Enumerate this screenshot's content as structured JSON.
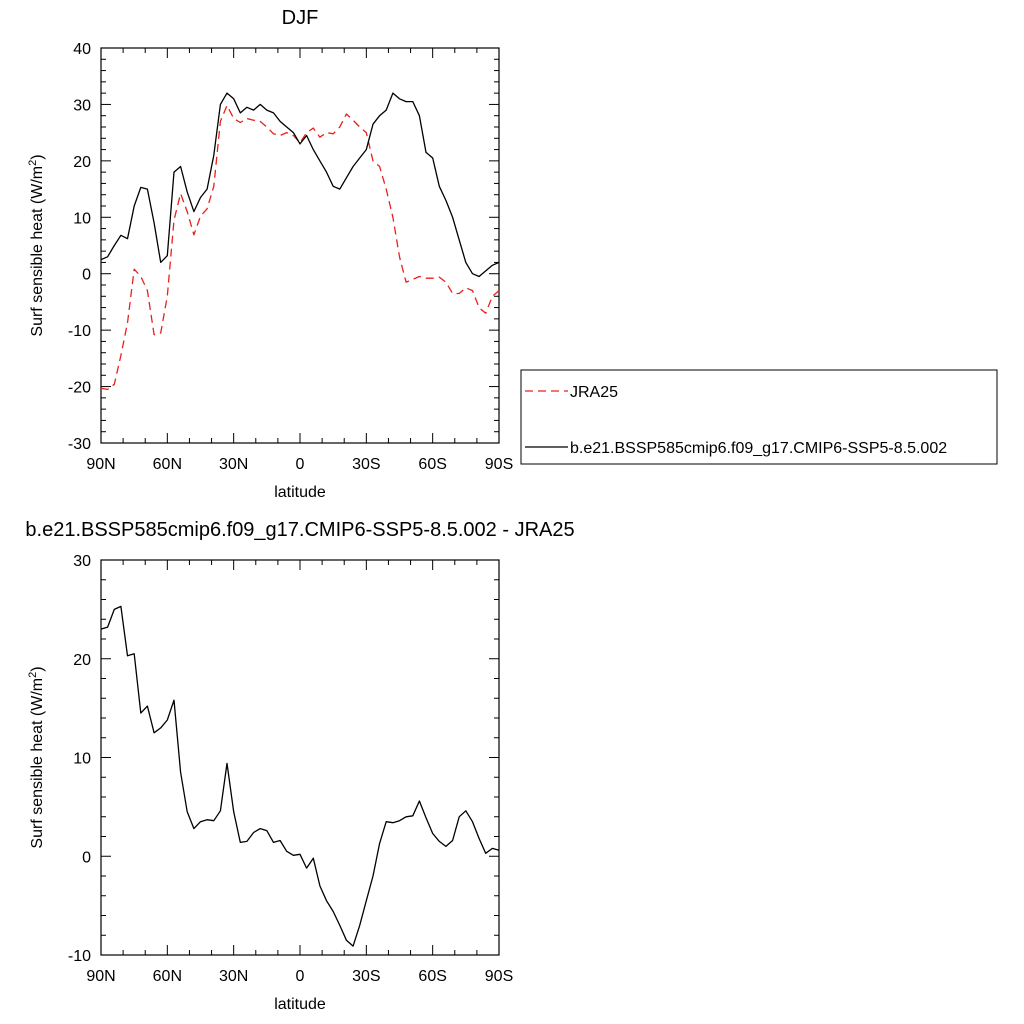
{
  "chart_data": [
    {
      "type": "line",
      "title": "DJF",
      "xlabel": "latitude",
      "ylabel": "Surf sensible heat (W/m",
      "ylabel_sup": "2",
      "ylabel_close": ")",
      "xlim": [
        90,
        -90
      ],
      "ylim": [
        -30,
        40
      ],
      "x_ticks": [
        90,
        60,
        30,
        0,
        -30,
        -60,
        -90
      ],
      "x_tick_labels": [
        "90N",
        "60N",
        "30N",
        "0",
        "30S",
        "60S",
        "90S"
      ],
      "y_ticks": [
        -30,
        -20,
        -10,
        0,
        10,
        20,
        30,
        40
      ],
      "y_tick_labels": [
        "-30",
        "-20",
        "-10",
        "0",
        "10",
        "20",
        "30",
        "40"
      ],
      "legend_position": "right",
      "series": [
        {
          "name": "JRA25",
          "color": "#e8211b",
          "dash": "dashed",
          "x": [
            90,
            87,
            84,
            81,
            78,
            75,
            72,
            69,
            66,
            63,
            60,
            57,
            54,
            51,
            48,
            45,
            42,
            39,
            36,
            33,
            30,
            27,
            24,
            21,
            18,
            15,
            12,
            9,
            6,
            3,
            0,
            -3,
            -6,
            -9,
            -12,
            -15,
            -18,
            -21,
            -24,
            -27,
            -30,
            -33,
            -36,
            -39,
            -42,
            -45,
            -48,
            -51,
            -54,
            -57,
            -60,
            -63,
            -66,
            -69,
            -72,
            -75,
            -78,
            -81,
            -84,
            -87,
            -90
          ],
          "y": [
            -20.3,
            -20.5,
            -19.6,
            -14.5,
            -8.7,
            0.8,
            -0.5,
            -3.0,
            -10.8,
            -10.5,
            -4.0,
            9.5,
            14.2,
            11.0,
            6.9,
            10.2,
            11.5,
            15.5,
            27.0,
            29.8,
            27.5,
            26.8,
            27.5,
            27.2,
            27.0,
            26.0,
            24.8,
            24.5,
            25.0,
            24.5,
            23.2,
            25.0,
            25.8,
            24.2,
            25.0,
            24.8,
            26.0,
            28.3,
            27.2,
            26.0,
            25.0,
            20.0,
            19.0,
            15.0,
            10.0,
            3.0,
            -1.5,
            -1.0,
            -0.5,
            -0.8,
            -0.8,
            -0.6,
            -1.5,
            -3.5,
            -3.5,
            -2.5,
            -3.0,
            -6.0,
            -7.0,
            -4.0,
            -3.0
          ]
        },
        {
          "name": "b.e21.BSSP585cmip6.f09_g17.CMIP6-SSP5-8.5.002",
          "color": "#000000",
          "dash": "solid",
          "x": [
            90,
            87,
            84,
            81,
            78,
            75,
            72,
            69,
            66,
            63,
            60,
            57,
            54,
            51,
            48,
            45,
            42,
            39,
            36,
            33,
            30,
            27,
            24,
            21,
            18,
            15,
            12,
            9,
            6,
            3,
            0,
            -3,
            -6,
            -9,
            -12,
            -15,
            -18,
            -21,
            -24,
            -27,
            -30,
            -33,
            -36,
            -39,
            -42,
            -45,
            -48,
            -51,
            -54,
            -57,
            -60,
            -63,
            -66,
            -69,
            -72,
            -75,
            -78,
            -81,
            -84,
            -87,
            -90
          ],
          "y": [
            2.5,
            3.0,
            5.0,
            6.8,
            6.2,
            12.0,
            15.3,
            15.0,
            9.0,
            2.0,
            3.2,
            18.0,
            19.0,
            14.5,
            11.0,
            13.5,
            15.0,
            21.0,
            30.0,
            32.0,
            31.0,
            28.5,
            29.5,
            29.0,
            30.0,
            29.0,
            28.5,
            27.0,
            26.0,
            25.0,
            23.0,
            24.5,
            22.0,
            20.0,
            18.0,
            15.5,
            15.0,
            17.0,
            19.0,
            20.5,
            22.0,
            26.5,
            28.0,
            29.0,
            32.0,
            31.0,
            30.5,
            30.5,
            28.0,
            21.5,
            20.5,
            15.5,
            13.0,
            10.0,
            6.0,
            2.0,
            0.0,
            -0.5,
            0.5,
            1.5,
            2.0
          ]
        }
      ]
    },
    {
      "type": "line",
      "title": "b.e21.BSSP585cmip6.f09_g17.CMIP6-SSP5-8.5.002 - JRA25",
      "xlabel": "latitude",
      "ylabel": "Surf sensible heat (W/m",
      "ylabel_sup": "2",
      "ylabel_close": ")",
      "xlim": [
        90,
        -90
      ],
      "ylim": [
        -10,
        30
      ],
      "x_ticks": [
        90,
        60,
        30,
        0,
        -30,
        -60,
        -90
      ],
      "x_tick_labels": [
        "90N",
        "60N",
        "30N",
        "0",
        "30S",
        "60S",
        "90S"
      ],
      "y_ticks": [
        -10,
        0,
        10,
        20,
        30
      ],
      "y_tick_labels": [
        "-10",
        "0",
        "10",
        "20",
        "30"
      ],
      "series": [
        {
          "color": "#000000",
          "dash": "solid",
          "x": [
            90,
            87,
            84,
            81,
            78,
            75,
            72,
            69,
            66,
            63,
            60,
            57,
            54,
            51,
            48,
            45,
            42,
            39,
            36,
            33,
            30,
            27,
            24,
            21,
            18,
            15,
            12,
            9,
            6,
            3,
            0,
            -3,
            -6,
            -9,
            -12,
            -15,
            -18,
            -21,
            -24,
            -27,
            -30,
            -33,
            -36,
            -39,
            -42,
            -45,
            -48,
            -51,
            -54,
            -57,
            -60,
            -63,
            -66,
            -69,
            -72,
            -75,
            -78,
            -81,
            -84,
            -87,
            -90
          ],
          "y": [
            23.0,
            23.2,
            25.0,
            25.3,
            20.3,
            20.5,
            14.5,
            15.2,
            12.5,
            13.0,
            13.8,
            15.8,
            8.5,
            4.5,
            2.8,
            3.5,
            3.7,
            3.6,
            4.6,
            9.4,
            4.5,
            1.4,
            1.5,
            2.4,
            2.8,
            2.6,
            1.4,
            1.6,
            0.5,
            0.1,
            0.2,
            -1.2,
            -0.2,
            -3.0,
            -4.5,
            -5.6,
            -7.0,
            -8.5,
            -9.1,
            -7.0,
            -4.5,
            -2.0,
            1.3,
            3.5,
            3.4,
            3.6,
            4.0,
            4.1,
            5.6,
            3.9,
            2.3,
            1.5,
            1.0,
            1.6,
            4.0,
            4.6,
            3.5,
            1.8,
            0.3,
            0.8,
            0.6
          ]
        }
      ]
    }
  ]
}
